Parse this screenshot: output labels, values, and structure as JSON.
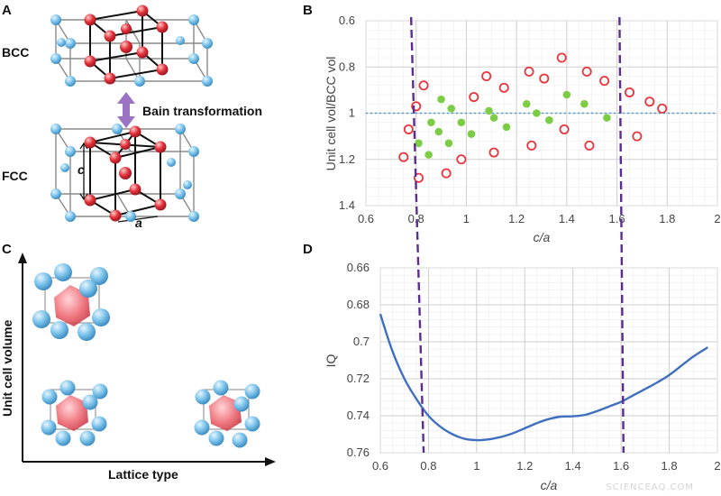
{
  "panels": {
    "a": {
      "letter": "A",
      "top_label": "BCC",
      "bottom_label": "FCC",
      "transform_label": "Bain transformation",
      "dim_c": "c",
      "dim_a": "a"
    },
    "c": {
      "letter": "C",
      "ylabel": "Unit cell volume",
      "xlabel": "Lattice type"
    }
  },
  "colors": {
    "atom_blue": "#7cc3ea",
    "atom_red": "#e3323c",
    "arrow_purple": "#9b72c4",
    "curve_blue": "#3f6fbf",
    "dashed_purple": "#5b2c91",
    "open_marker": "#e8353c",
    "filled_marker": "#7ccc45",
    "dotted_line": "#4a9ad6"
  },
  "watermark": "SCIENCEAQ.COM",
  "chart_data": [
    {
      "panel": "B",
      "type": "scatter",
      "title": "",
      "xlabel": "c/a",
      "ylabel": "Unit cell vol/BCC vol",
      "xlim": [
        0.6,
        2
      ],
      "ylim": [
        0.6,
        1.4
      ],
      "xticks": [
        "0.6",
        "0.8",
        "1",
        "1.2",
        "1.4",
        "1.6",
        "1.8",
        "2"
      ],
      "yticks": [
        "0.6",
        "0.8",
        "1",
        "1.2",
        "1.4"
      ],
      "grid": true,
      "reference_line": 1.0,
      "vertical_dashed": [
        0.78,
        1.61
      ],
      "series": [
        {
          "style": "open-circle",
          "x": [
            0.75,
            0.77,
            0.8,
            0.81,
            0.83,
            0.92,
            0.98,
            1.03,
            1.08,
            1.11,
            1.15,
            1.25,
            1.26,
            1.31,
            1.38,
            1.39,
            1.48,
            1.49,
            1.55,
            1.65,
            1.68,
            1.73,
            1.78
          ],
          "y": [
            1.19,
            1.07,
            0.97,
            1.28,
            0.88,
            1.26,
            1.2,
            0.93,
            0.84,
            1.17,
            0.89,
            0.82,
            1.14,
            0.85,
            0.76,
            1.07,
            0.82,
            1.14,
            0.86,
            0.91,
            1.1,
            0.95,
            0.98
          ]
        },
        {
          "style": "filled-circle",
          "x": [
            0.81,
            0.85,
            0.86,
            0.89,
            0.9,
            0.93,
            0.94,
            0.98,
            1.02,
            1.09,
            1.11,
            1.16,
            1.24,
            1.28,
            1.33,
            1.4,
            1.47,
            1.56
          ],
          "y": [
            1.13,
            1.18,
            1.04,
            1.08,
            0.94,
            1.13,
            0.98,
            1.04,
            1.09,
            0.99,
            1.02,
            1.06,
            0.96,
            1.0,
            1.03,
            0.92,
            0.96,
            1.02
          ]
        }
      ]
    },
    {
      "panel": "D",
      "type": "line",
      "title": "",
      "xlabel": "c/a",
      "ylabel": "IQ",
      "xlim": [
        0.6,
        2
      ],
      "ylim": [
        0.66,
        0.76
      ],
      "xticks": [
        "0.6",
        "0.8",
        "1",
        "1.2",
        "1.4",
        "1.6",
        "1.8",
        "2"
      ],
      "yticks": [
        "0.66",
        "0.68",
        "0.7",
        "0.72",
        "0.74",
        "0.76"
      ],
      "grid": true,
      "vertical_dashed": [
        0.78,
        1.61
      ],
      "series": [
        {
          "x": [
            0.6,
            0.65,
            0.7,
            0.75,
            0.8,
            0.85,
            0.9,
            0.95,
            1.0,
            1.05,
            1.1,
            1.15,
            1.2,
            1.25,
            1.3,
            1.35,
            1.4,
            1.45,
            1.5,
            1.55,
            1.6,
            1.65,
            1.7,
            1.75,
            1.8,
            1.85,
            1.9,
            1.96
          ],
          "y": [
            0.685,
            0.705,
            0.72,
            0.731,
            0.74,
            0.746,
            0.75,
            0.7525,
            0.7532,
            0.7528,
            0.7515,
            0.7495,
            0.7468,
            0.744,
            0.7418,
            0.7405,
            0.7403,
            0.7395,
            0.7375,
            0.735,
            0.7325,
            0.729,
            0.7255,
            0.722,
            0.718,
            0.713,
            0.708,
            0.703
          ]
        }
      ]
    }
  ]
}
